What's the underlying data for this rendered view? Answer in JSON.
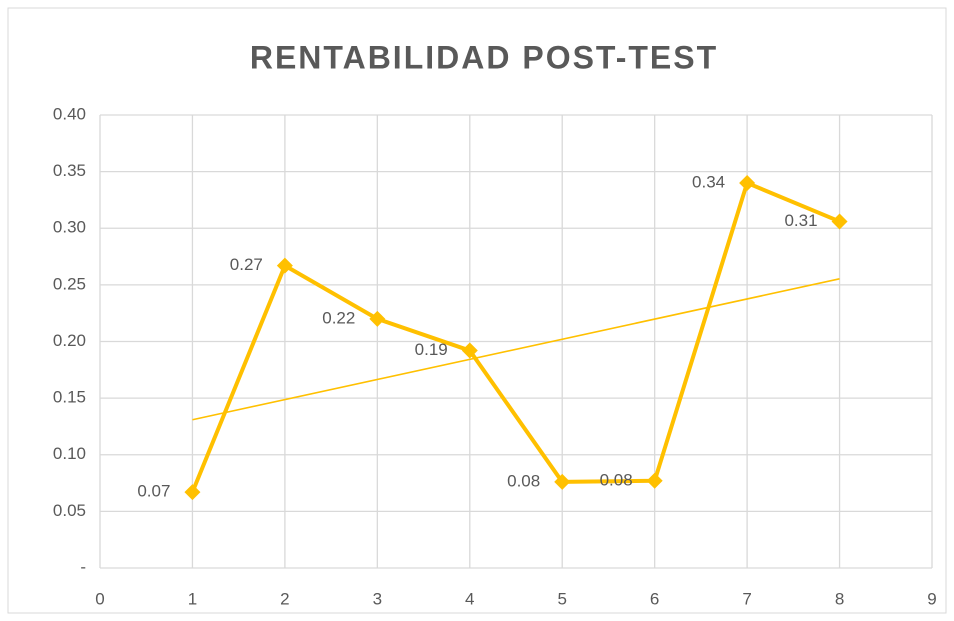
{
  "chart_data": {
    "type": "line",
    "title": "RENTABILIDAD POST-TEST",
    "x": [
      1,
      2,
      3,
      4,
      5,
      6,
      7,
      8
    ],
    "series": [
      {
        "color": "#FFC000",
        "values": [
          0.067,
          0.267,
          0.22,
          0.192,
          0.076,
          0.077,
          0.34,
          0.306
        ],
        "value_labels": [
          "0.07",
          "0.27",
          "0.22",
          "0.19",
          "0.08",
          "0.08",
          "0.34",
          "0.31"
        ]
      }
    ],
    "trendline": true,
    "xlim": [
      0,
      9
    ],
    "xticks": [
      0,
      1,
      2,
      3,
      4,
      5,
      6,
      7,
      8,
      9
    ],
    "ylim": [
      0,
      0.4
    ],
    "yticks": [
      {
        "value": 0,
        "label": "-"
      },
      0.05,
      {
        "value": 0.1,
        "label": "0.10"
      },
      0.15,
      {
        "value": 0.2,
        "label": "0.20"
      },
      0.25,
      {
        "value": 0.3,
        "label": "0.30"
      },
      0.35,
      {
        "value": 0.4,
        "label": "0.40"
      }
    ],
    "grid": true
  }
}
